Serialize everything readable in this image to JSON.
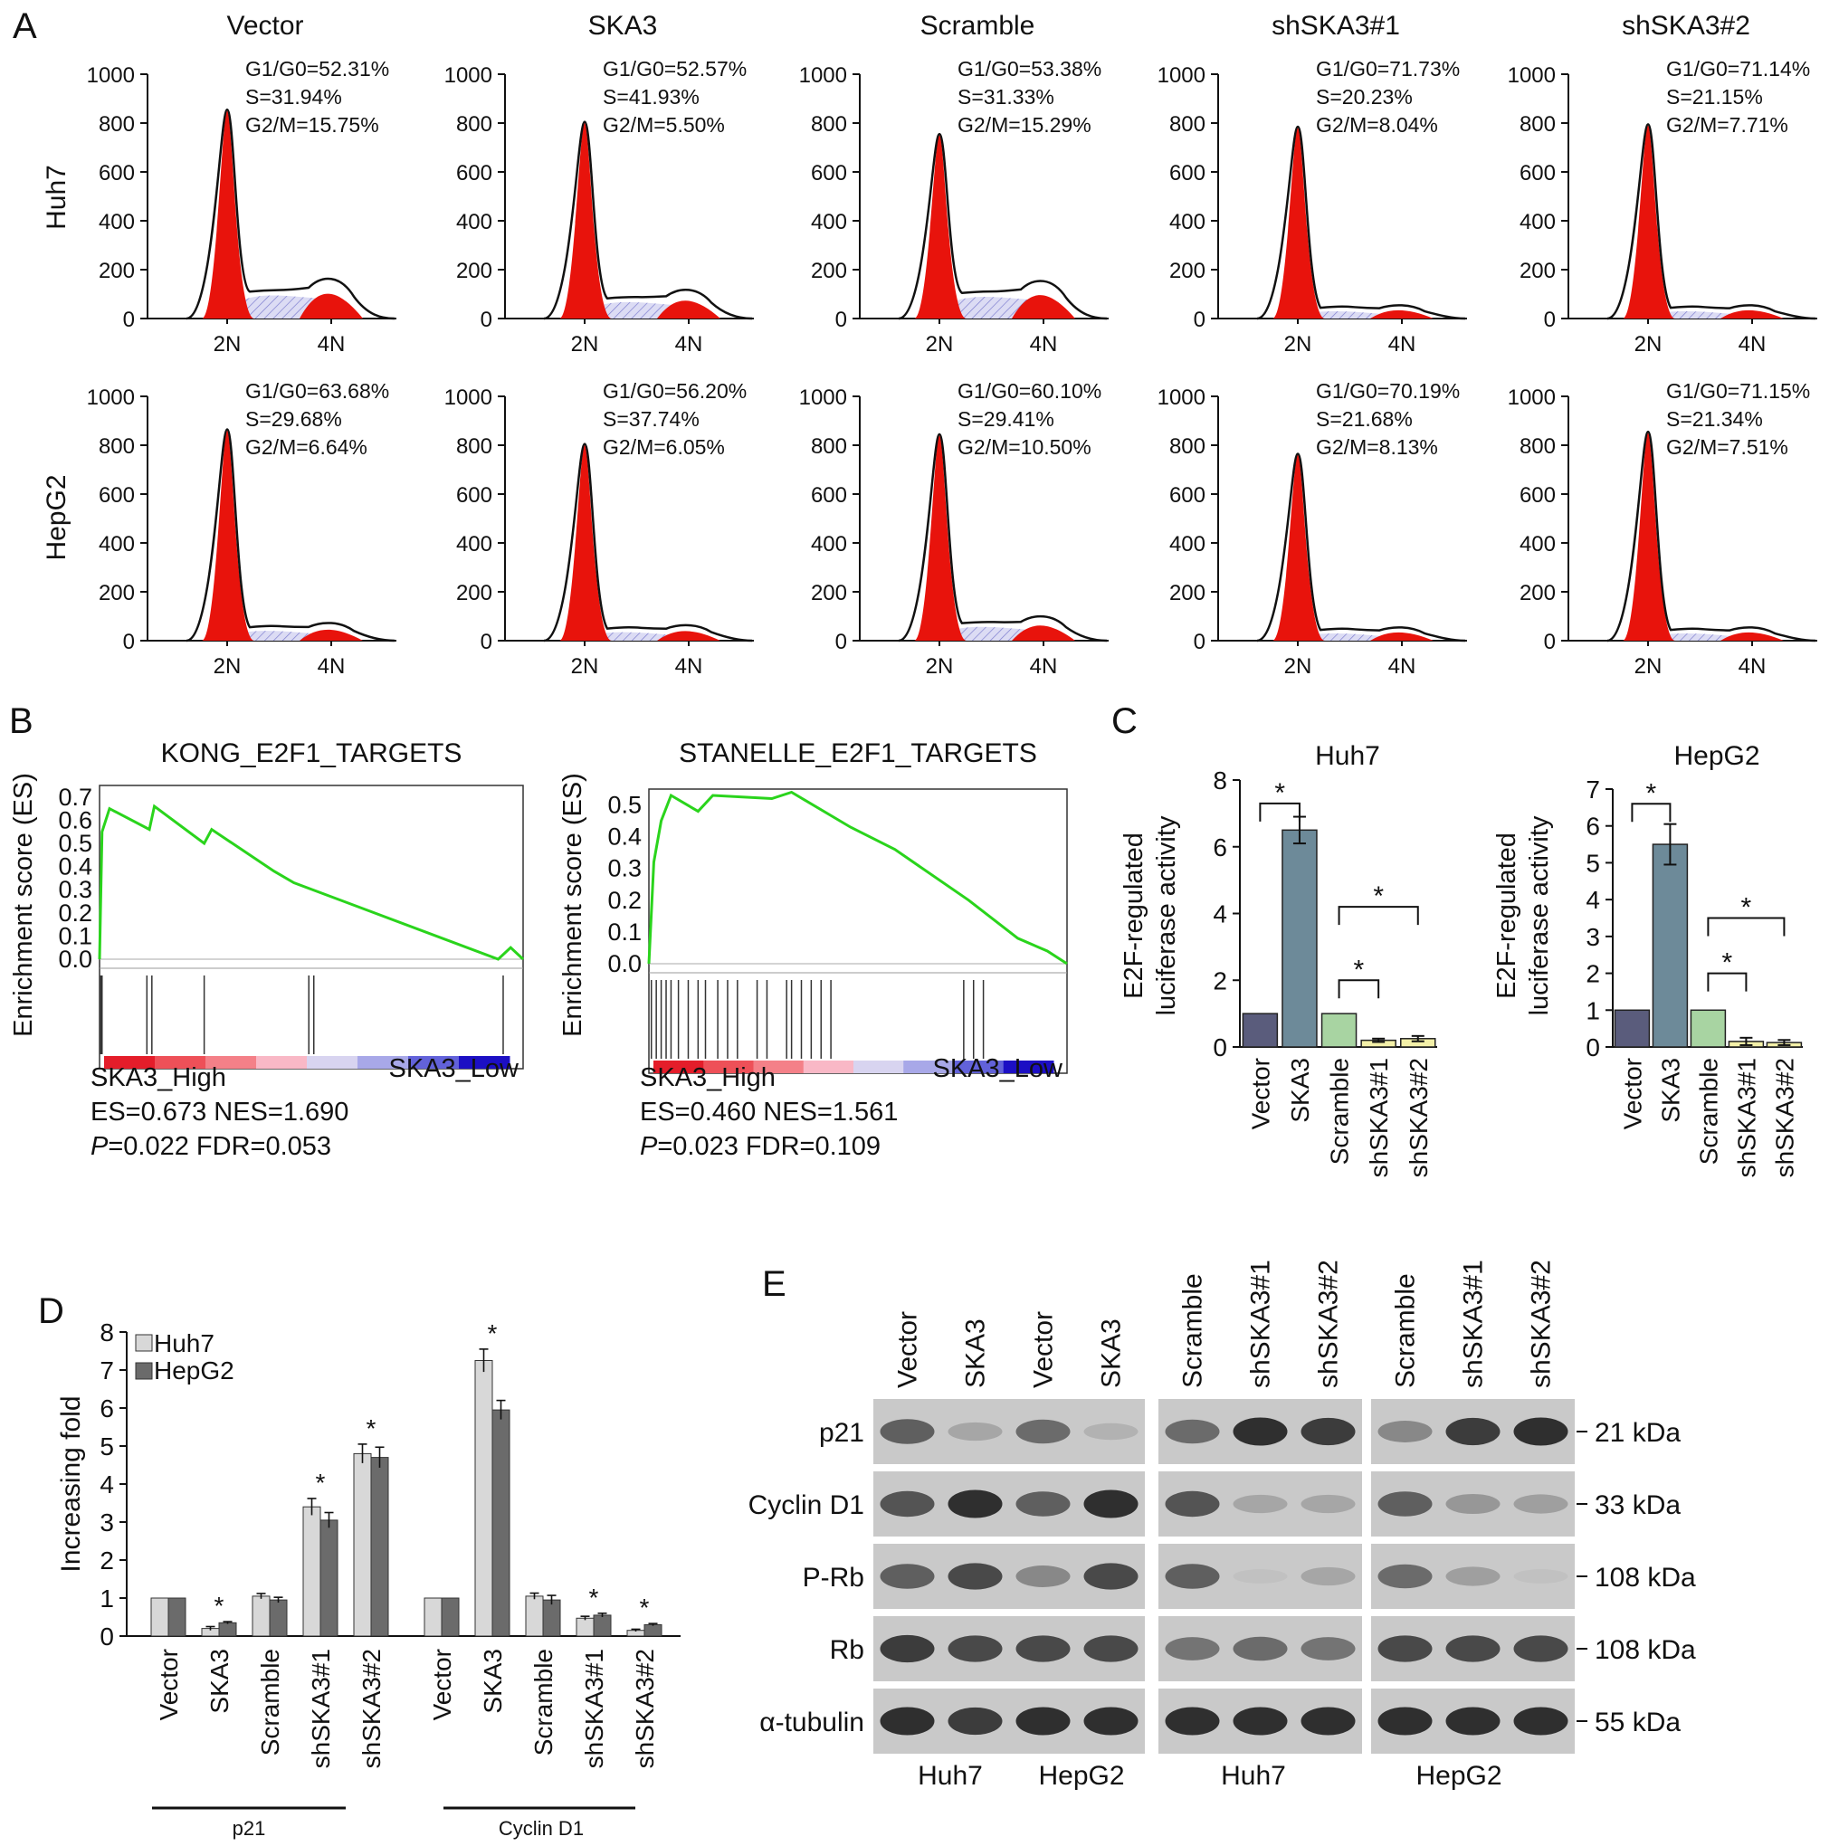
{
  "panels": {
    "A": {
      "letter": "A",
      "columns": [
        "Vector",
        "SKA3",
        "Scramble",
        "shSKA3#1",
        "shSKA3#2"
      ],
      "rows": [
        "Huh7",
        "HepG2"
      ],
      "y_ticks": [
        "1000",
        "800",
        "600",
        "400",
        "200",
        "0"
      ],
      "x_ticks": [
        "2N",
        "4N"
      ],
      "stats": [
        [
          [
            "G1/G0=52.31%",
            "S=31.94%",
            "G2/M=15.75%"
          ],
          [
            "G1/G0=52.57%",
            "S=41.93%",
            "G2/M=5.50%"
          ],
          [
            "G1/G0=53.38%",
            "S=31.33%",
            "G2/M=15.29%"
          ],
          [
            "G1/G0=71.73%",
            "S=20.23%",
            "G2/M=8.04%"
          ],
          [
            "G1/G0=71.14%",
            "S=21.15%",
            "G2/M=7.71%"
          ]
        ],
        [
          [
            "G1/G0=63.68%",
            "S=29.68%",
            "G2/M=6.64%"
          ],
          [
            "G1/G0=56.20%",
            "S=37.74%",
            "G2/M=6.05%"
          ],
          [
            "G1/G0=60.10%",
            "S=29.41%",
            "G2/M=10.50%"
          ],
          [
            "G1/G0=70.19%",
            "S=21.68%",
            "G2/M=8.13%"
          ],
          [
            "G1/G0=71.15%",
            "S=21.34%",
            "G2/M=7.51%"
          ]
        ]
      ],
      "peak_heights": [
        [
          [
            850,
            180
          ],
          [
            800,
            130
          ],
          [
            750,
            170
          ],
          [
            780,
            60
          ],
          [
            790,
            60
          ]
        ],
        [
          [
            860,
            80
          ],
          [
            800,
            70
          ],
          [
            840,
            110
          ],
          [
            760,
            60
          ],
          [
            850,
            60
          ]
        ]
      ],
      "colors": {
        "g1_fill": "#e8130c",
        "s_fill": "#c8c8ee",
        "line": "#111111"
      }
    },
    "B": {
      "letter": "B",
      "ylabel": "Enrichment score (ES)",
      "plots": [
        {
          "title": "KONG_E2F1_TARGETS",
          "y_ticks": [
            "0.7",
            "0.6",
            "0.5",
            "0.4",
            "0.3",
            "0.2",
            "0.1",
            "0.0"
          ],
          "left_label": "SKA3_High",
          "right_label": "SKA3_Low",
          "es_line": "ES=0.673 NES=1.690",
          "p_prefix": "P",
          "p_rest": "=0.022 FDR=0.053",
          "curve": [
            [
              0,
              0.0
            ],
            [
              0.01,
              0.55
            ],
            [
              0.04,
              0.65
            ],
            [
              0.2,
              0.56
            ],
            [
              0.22,
              0.66
            ],
            [
              0.42,
              0.5
            ],
            [
              0.45,
              0.56
            ],
            [
              0.7,
              0.38
            ],
            [
              0.78,
              0.33
            ],
            [
              1.6,
              0.0
            ],
            [
              1.65,
              0.05
            ],
            [
              1.7,
              0.0
            ]
          ],
          "hits": [
            0.005,
            0.01,
            0.19,
            0.21,
            0.42,
            0.84,
            0.86,
            1.62
          ]
        },
        {
          "title": "STANELLE_E2F1_TARGETS",
          "y_ticks": [
            "0.5",
            "0.4",
            "0.3",
            "0.2",
            "0.1",
            "0.0"
          ],
          "left_label": "SKA3_High",
          "right_label": "SKA3_Low",
          "es_line": "ES=0.460 NES=1.561",
          "p_prefix": "P",
          "p_rest": "=0.023 FDR=0.109",
          "curve": [
            [
              0,
              0.0
            ],
            [
              0.02,
              0.32
            ],
            [
              0.05,
              0.45
            ],
            [
              0.09,
              0.53
            ],
            [
              0.2,
              0.48
            ],
            [
              0.26,
              0.53
            ],
            [
              0.5,
              0.52
            ],
            [
              0.58,
              0.54
            ],
            [
              0.82,
              0.43
            ],
            [
              1.0,
              0.36
            ],
            [
              1.3,
              0.2
            ],
            [
              1.5,
              0.08
            ],
            [
              1.62,
              0.04
            ],
            [
              1.7,
              0.0
            ]
          ],
          "hits": [
            0.01,
            0.03,
            0.05,
            0.07,
            0.09,
            0.12,
            0.16,
            0.2,
            0.23,
            0.28,
            0.32,
            0.36,
            0.44,
            0.48,
            0.56,
            0.58,
            0.62,
            0.66,
            0.7,
            0.74,
            1.28,
            1.32,
            1.36
          ]
        }
      ],
      "rank_colors": [
        "#e41d2a",
        "#ee5058",
        "#f48088",
        "#f9b8c6",
        "#d8d4f0",
        "#a8a8e8",
        "#6262da",
        "#1c0fc4"
      ]
    },
    "C": {
      "letter": "C",
      "ylabel_line1": "E2F-regulated",
      "ylabel_line2": "luciferase activity",
      "categories": [
        "Vector",
        "SKA3",
        "Scramble",
        "shSKA3#1",
        "shSKA3#2"
      ],
      "significance_mark": "*",
      "colors": [
        "#5a5c7c",
        "#6d8a99",
        "#a8d4a2",
        "#f3f0a8",
        "#f3f0a8"
      ]
    },
    "D": {
      "letter": "D",
      "ylabel": "Increasing fold",
      "y_ticks": [
        "0",
        "1",
        "2",
        "3",
        "4",
        "5",
        "6",
        "7",
        "8"
      ],
      "legend": [
        "Huh7",
        "HepG2"
      ],
      "groups": [
        "p21",
        "Cyclin D1"
      ],
      "categories": [
        "Vector",
        "SKA3",
        "Scramble",
        "shSKA3#1",
        "shSKA3#2"
      ],
      "significance_mark": "*",
      "colors": {
        "huh7": "#d8d8d8",
        "hepg2": "#6b6b6b"
      }
    },
    "E": {
      "letter": "E",
      "lanes_block1": [
        "Vector",
        "SKA3",
        "Vector",
        "SKA3"
      ],
      "lanes_block2": [
        "Scramble",
        "shSKA3#1",
        "shSKA3#2"
      ],
      "lanes_block3": [
        "Scramble",
        "shSKA3#1",
        "shSKA3#2"
      ],
      "proteins": [
        "p21",
        "Cyclin D1",
        "P-Rb",
        "Rb",
        "α-tubulin"
      ],
      "weights": [
        "21 kDa",
        "33 kDa",
        "108 kDa",
        "108 kDa",
        "55 kDa"
      ],
      "bottom_labels": [
        "Huh7",
        "HepG2",
        "Huh7",
        "HepG2"
      ],
      "band_intensity": [
        [
          0.75,
          0.35,
          0.7,
          0.25,
          0.7,
          0.95,
          0.9,
          0.55,
          0.9,
          0.95
        ],
        [
          0.8,
          0.95,
          0.75,
          0.95,
          0.8,
          0.35,
          0.35,
          0.75,
          0.45,
          0.4
        ],
        [
          0.75,
          0.85,
          0.55,
          0.85,
          0.75,
          0.1,
          0.35,
          0.7,
          0.4,
          0.1
        ],
        [
          0.9,
          0.85,
          0.85,
          0.85,
          0.65,
          0.7,
          0.65,
          0.85,
          0.85,
          0.85
        ],
        [
          0.95,
          0.9,
          0.95,
          0.95,
          0.95,
          0.95,
          0.95,
          0.95,
          0.95,
          0.95
        ]
      ]
    }
  },
  "chart_data": [
    {
      "type": "bar",
      "title": "Huh7",
      "ylabel": "E2F-regulated luciferase activity",
      "categories": [
        "Vector",
        "SKA3",
        "Scramble",
        "shSKA3#1",
        "shSKA3#2"
      ],
      "values": [
        1.0,
        6.5,
        1.0,
        0.2,
        0.25
      ],
      "errors": [
        0.0,
        0.4,
        0.0,
        0.05,
        0.08
      ],
      "ylim": [
        0,
        8
      ],
      "y_ticks": [
        "0",
        "2",
        "4",
        "6",
        "8"
      ],
      "brackets": [
        [
          0,
          1
        ],
        [
          2,
          3
        ],
        [
          2,
          4
        ]
      ]
    },
    {
      "type": "bar",
      "title": "HepG2",
      "ylabel": "E2F-regulated luciferase activity",
      "categories": [
        "Vector",
        "SKA3",
        "Scramble",
        "shSKA3#1",
        "shSKA3#2"
      ],
      "values": [
        1.0,
        5.5,
        1.0,
        0.15,
        0.12
      ],
      "errors": [
        0.0,
        0.55,
        0.0,
        0.1,
        0.07
      ],
      "ylim": [
        0,
        7
      ],
      "y_ticks": [
        "0",
        "1",
        "2",
        "3",
        "4",
        "5",
        "6",
        "7"
      ],
      "brackets": [
        [
          0,
          1
        ],
        [
          2,
          3
        ],
        [
          2,
          4
        ]
      ]
    },
    {
      "type": "bar",
      "ylabel": "Increasing fold",
      "ylim": [
        0,
        8
      ],
      "categories": [
        "Vector",
        "SKA3",
        "Scramble",
        "shSKA3#1",
        "shSKA3#2"
      ],
      "series": [
        {
          "name": "Huh7",
          "p21": [
            1.0,
            0.2,
            1.05,
            3.4,
            4.8
          ],
          "p21_err": [
            0,
            0.05,
            0.07,
            0.22,
            0.25
          ],
          "cyclin_d1": [
            1.0,
            7.25,
            1.05,
            0.47,
            0.15
          ],
          "cyclin_d1_err": [
            0,
            0.3,
            0.08,
            0.05,
            0.03
          ]
        },
        {
          "name": "HepG2",
          "p21": [
            1.0,
            0.35,
            0.95,
            3.05,
            4.7
          ],
          "p21_err": [
            0,
            0.03,
            0.07,
            0.2,
            0.27
          ],
          "cyclin_d1": [
            1.0,
            5.95,
            0.95,
            0.55,
            0.3
          ],
          "cyclin_d1_err": [
            0,
            0.25,
            0.12,
            0.05,
            0.03
          ]
        }
      ],
      "significant": {
        "p21": [
          1,
          3,
          4
        ],
        "cyclin_d1": [
          1,
          3,
          4
        ]
      }
    }
  ]
}
